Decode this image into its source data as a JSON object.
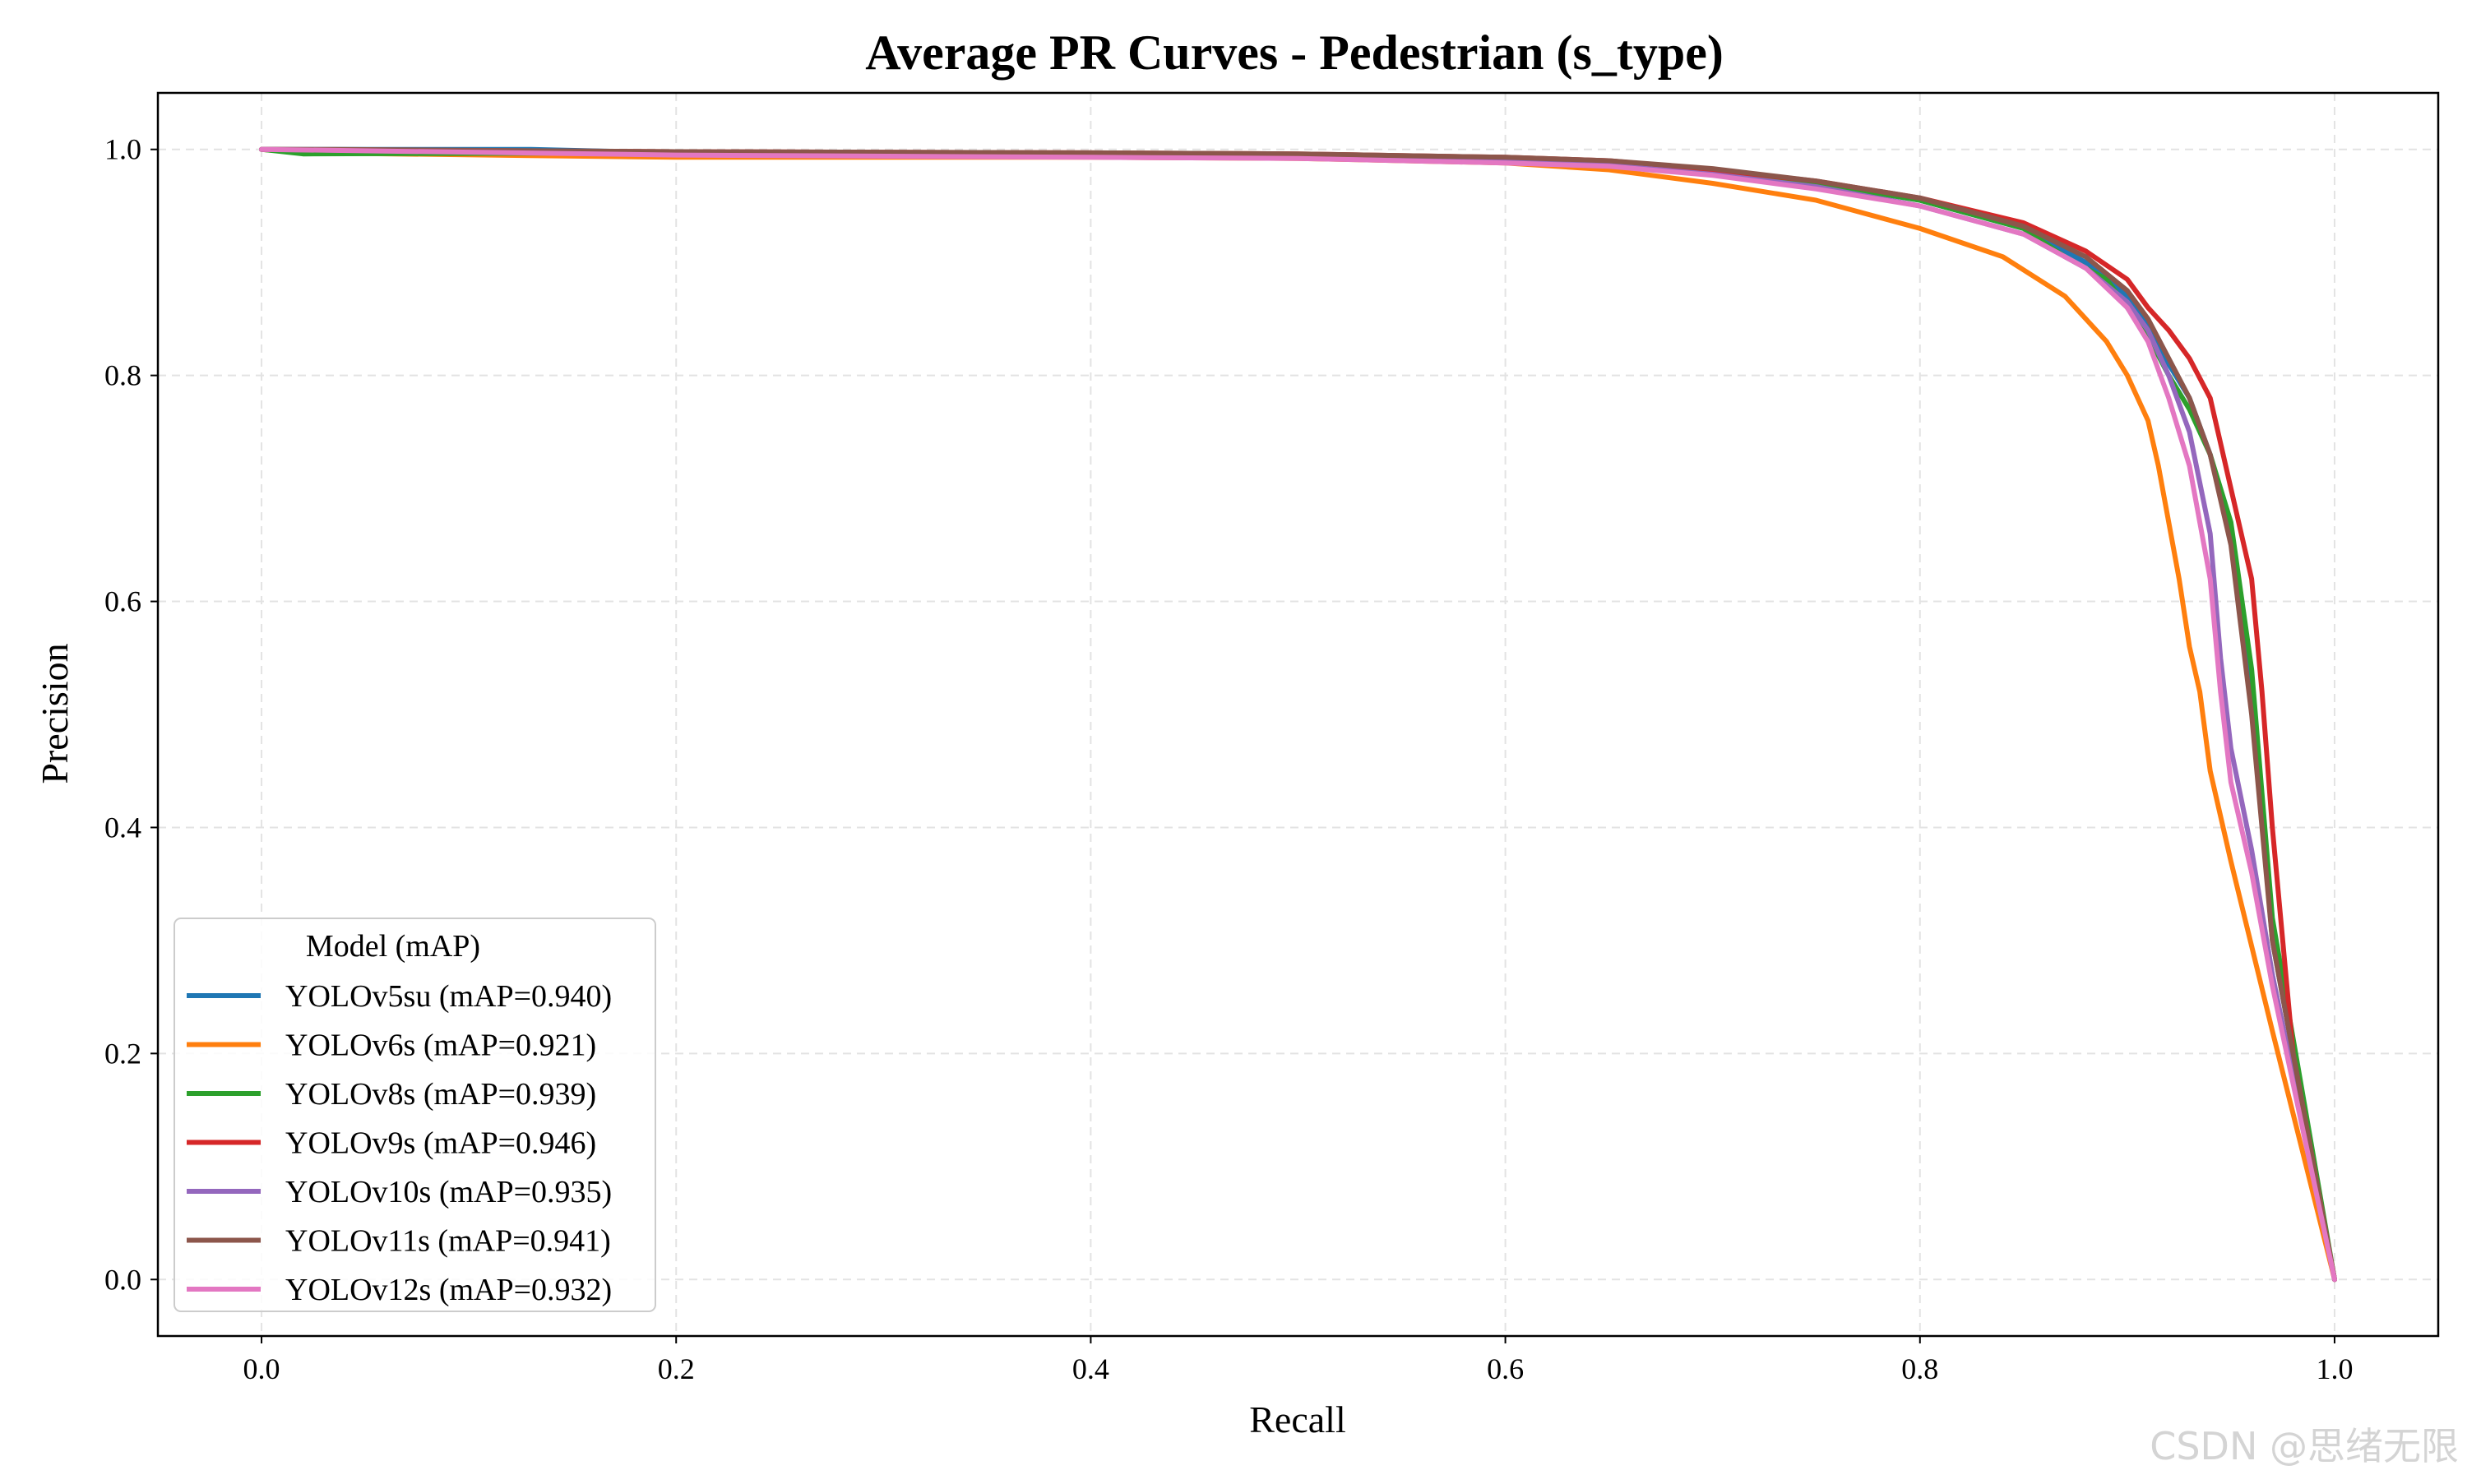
{
  "chart_data": {
    "type": "line",
    "title": "Average PR Curves - Pedestrian (s_type)",
    "xlabel": "Recall",
    "ylabel": "Precision",
    "xlim": [
      -0.05,
      1.05
    ],
    "ylim": [
      -0.05,
      1.05
    ],
    "xticks": [
      0.0,
      0.2,
      0.4,
      0.6,
      0.8,
      1.0
    ],
    "xtick_labels": [
      "0.0",
      "0.2",
      "0.4",
      "0.6",
      "0.8",
      "1.0"
    ],
    "yticks": [
      0.0,
      0.2,
      0.4,
      0.6,
      0.8,
      1.0
    ],
    "ytick_labels": [
      "0.0",
      "0.2",
      "0.4",
      "0.6",
      "0.8",
      "1.0"
    ],
    "grid": true,
    "legend": {
      "title": "Model (mAP)",
      "placement": "lower-left"
    },
    "series": [
      {
        "name": "YOLOv5su (mAP=0.940)",
        "color": "#1f77b4",
        "points": [
          [
            0.0,
            1.0
          ],
          [
            0.13,
            1.0
          ],
          [
            0.2,
            0.997
          ],
          [
            0.4,
            0.996
          ],
          [
            0.5,
            0.995
          ],
          [
            0.6,
            0.992
          ],
          [
            0.65,
            0.988
          ],
          [
            0.7,
            0.98
          ],
          [
            0.75,
            0.97
          ],
          [
            0.8,
            0.955
          ],
          [
            0.85,
            0.93
          ],
          [
            0.88,
            0.9
          ],
          [
            0.9,
            0.87
          ],
          [
            0.91,
            0.845
          ],
          [
            0.92,
            0.81
          ],
          [
            0.93,
            0.78
          ],
          [
            0.94,
            0.73
          ],
          [
            0.95,
            0.66
          ],
          [
            0.96,
            0.52
          ],
          [
            0.97,
            0.3
          ],
          [
            1.0,
            0.0
          ]
        ]
      },
      {
        "name": "YOLOv6s (mAP=0.921)",
        "color": "#ff7f0e",
        "points": [
          [
            0.0,
            1.0
          ],
          [
            0.02,
            0.997
          ],
          [
            0.2,
            0.993
          ],
          [
            0.4,
            0.993
          ],
          [
            0.5,
            0.992
          ],
          [
            0.6,
            0.988
          ],
          [
            0.65,
            0.982
          ],
          [
            0.7,
            0.97
          ],
          [
            0.75,
            0.955
          ],
          [
            0.8,
            0.93
          ],
          [
            0.84,
            0.905
          ],
          [
            0.87,
            0.87
          ],
          [
            0.89,
            0.83
          ],
          [
            0.9,
            0.8
          ],
          [
            0.91,
            0.76
          ],
          [
            0.915,
            0.72
          ],
          [
            0.92,
            0.67
          ],
          [
            0.925,
            0.62
          ],
          [
            0.93,
            0.56
          ],
          [
            0.935,
            0.52
          ],
          [
            0.94,
            0.45
          ],
          [
            0.95,
            0.37
          ],
          [
            0.97,
            0.22
          ],
          [
            1.0,
            0.0
          ]
        ]
      },
      {
        "name": "YOLOv8s (mAP=0.939)",
        "color": "#2ca02c",
        "points": [
          [
            0.0,
            1.0
          ],
          [
            0.02,
            0.996
          ],
          [
            0.2,
            0.997
          ],
          [
            0.4,
            0.996
          ],
          [
            0.5,
            0.995
          ],
          [
            0.6,
            0.992
          ],
          [
            0.65,
            0.988
          ],
          [
            0.7,
            0.98
          ],
          [
            0.75,
            0.97
          ],
          [
            0.8,
            0.955
          ],
          [
            0.85,
            0.93
          ],
          [
            0.87,
            0.905
          ],
          [
            0.89,
            0.885
          ],
          [
            0.9,
            0.86
          ],
          [
            0.91,
            0.835
          ],
          [
            0.92,
            0.8
          ],
          [
            0.93,
            0.77
          ],
          [
            0.94,
            0.73
          ],
          [
            0.95,
            0.67
          ],
          [
            0.96,
            0.54
          ],
          [
            0.97,
            0.32
          ],
          [
            1.0,
            0.0
          ]
        ]
      },
      {
        "name": "YOLOv9s (mAP=0.946)",
        "color": "#d62728",
        "points": [
          [
            0.0,
            1.0
          ],
          [
            0.2,
            0.998
          ],
          [
            0.4,
            0.997
          ],
          [
            0.5,
            0.996
          ],
          [
            0.6,
            0.993
          ],
          [
            0.65,
            0.99
          ],
          [
            0.7,
            0.982
          ],
          [
            0.75,
            0.972
          ],
          [
            0.8,
            0.957
          ],
          [
            0.85,
            0.935
          ],
          [
            0.88,
            0.91
          ],
          [
            0.9,
            0.885
          ],
          [
            0.91,
            0.86
          ],
          [
            0.92,
            0.84
          ],
          [
            0.93,
            0.815
          ],
          [
            0.94,
            0.78
          ],
          [
            0.95,
            0.7
          ],
          [
            0.96,
            0.62
          ],
          [
            0.965,
            0.52
          ],
          [
            0.97,
            0.4
          ],
          [
            0.98,
            0.2
          ],
          [
            1.0,
            0.0
          ]
        ]
      },
      {
        "name": "YOLOv10s (mAP=0.935)",
        "color": "#9467bd",
        "points": [
          [
            0.0,
            1.0
          ],
          [
            0.2,
            0.996
          ],
          [
            0.4,
            0.995
          ],
          [
            0.5,
            0.994
          ],
          [
            0.6,
            0.99
          ],
          [
            0.65,
            0.986
          ],
          [
            0.7,
            0.978
          ],
          [
            0.75,
            0.967
          ],
          [
            0.8,
            0.95
          ],
          [
            0.85,
            0.925
          ],
          [
            0.88,
            0.895
          ],
          [
            0.9,
            0.865
          ],
          [
            0.91,
            0.84
          ],
          [
            0.92,
            0.8
          ],
          [
            0.93,
            0.75
          ],
          [
            0.94,
            0.66
          ],
          [
            0.945,
            0.55
          ],
          [
            0.95,
            0.47
          ],
          [
            0.96,
            0.38
          ],
          [
            0.97,
            0.27
          ],
          [
            1.0,
            0.0
          ]
        ]
      },
      {
        "name": "YOLOv11s (mAP=0.941)",
        "color": "#8c564b",
        "points": [
          [
            0.0,
            1.0
          ],
          [
            0.035,
            1.0
          ],
          [
            0.2,
            0.998
          ],
          [
            0.4,
            0.997
          ],
          [
            0.5,
            0.996
          ],
          [
            0.6,
            0.993
          ],
          [
            0.65,
            0.99
          ],
          [
            0.7,
            0.983
          ],
          [
            0.75,
            0.972
          ],
          [
            0.8,
            0.957
          ],
          [
            0.85,
            0.932
          ],
          [
            0.88,
            0.905
          ],
          [
            0.9,
            0.875
          ],
          [
            0.91,
            0.85
          ],
          [
            0.92,
            0.815
          ],
          [
            0.93,
            0.78
          ],
          [
            0.94,
            0.73
          ],
          [
            0.95,
            0.65
          ],
          [
            0.96,
            0.5
          ],
          [
            0.97,
            0.3
          ],
          [
            1.0,
            0.0
          ]
        ]
      },
      {
        "name": "YOLOv12s (mAP=0.932)",
        "color": "#e377c2",
        "points": [
          [
            0.0,
            1.0
          ],
          [
            0.2,
            0.995
          ],
          [
            0.4,
            0.993
          ],
          [
            0.5,
            0.992
          ],
          [
            0.6,
            0.988
          ],
          [
            0.65,
            0.985
          ],
          [
            0.7,
            0.977
          ],
          [
            0.75,
            0.965
          ],
          [
            0.8,
            0.95
          ],
          [
            0.85,
            0.925
          ],
          [
            0.88,
            0.895
          ],
          [
            0.9,
            0.86
          ],
          [
            0.91,
            0.83
          ],
          [
            0.92,
            0.78
          ],
          [
            0.93,
            0.72
          ],
          [
            0.94,
            0.62
          ],
          [
            0.945,
            0.52
          ],
          [
            0.95,
            0.44
          ],
          [
            0.96,
            0.36
          ],
          [
            0.97,
            0.26
          ],
          [
            1.0,
            0.0
          ]
        ]
      }
    ]
  },
  "watermark": "CSDN @思绪无限"
}
